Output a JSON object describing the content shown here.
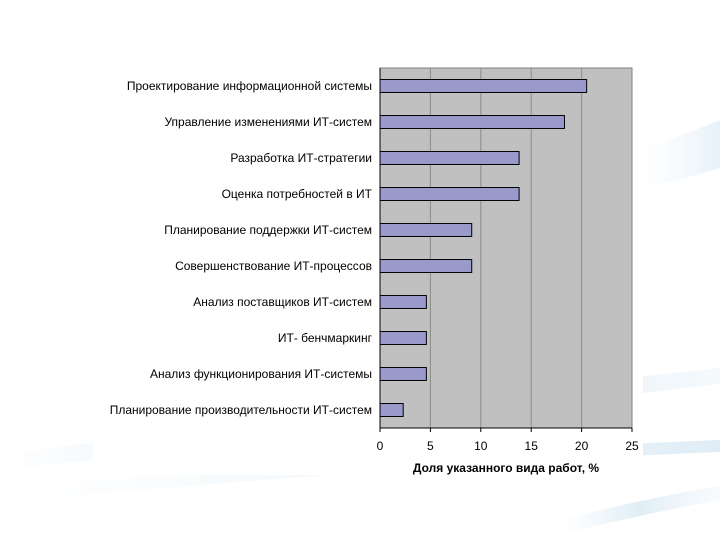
{
  "chart_data": {
    "type": "bar",
    "orientation": "horizontal",
    "title": "",
    "categories": [
      "Проектирование информационной системы",
      "Управление изменениями ИТ-систем",
      "Разработка ИТ-стратегии",
      "Оценка потребностей в ИТ",
      "Планирование поддержки ИТ-систем",
      "Совершенствование ИТ-процессов",
      "Анализ поставщиков ИТ-систем",
      "ИТ- бенчмаркинг",
      "Анализ функционирования ИТ-системы",
      "Планирование производительности ИТ-систем"
    ],
    "values": [
      20.5,
      18.3,
      13.8,
      13.8,
      9.1,
      9.1,
      4.6,
      4.6,
      4.6,
      2.3
    ],
    "xlabel": "Доля указанного вида работ, %",
    "ylabel": "",
    "xlim": [
      0,
      25
    ],
    "xticks": [
      "0",
      "5",
      "10",
      "15",
      "20",
      "25"
    ],
    "grid": true,
    "colors": {
      "plot_background": "#c0c0c0",
      "bar_fill": "#9999cc",
      "bar_stroke": "#000000",
      "gridline": "#8c8c8c"
    }
  }
}
